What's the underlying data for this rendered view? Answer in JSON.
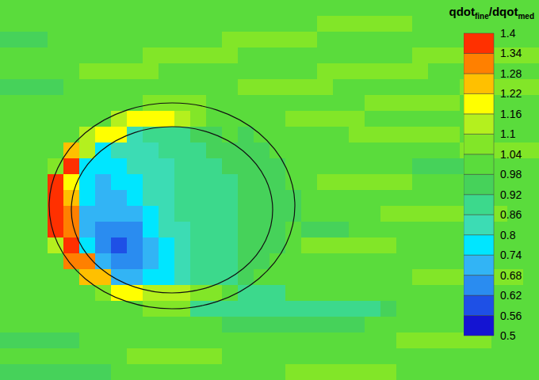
{
  "chart_data": {
    "type": "contour",
    "title": [
      {
        "text": "qdot"
      },
      {
        "text": "fine",
        "sub": true
      },
      {
        "text": "/dqot"
      },
      {
        "text": "med",
        "sub": true
      }
    ],
    "xlim": [
      0,
      34
    ],
    "ylim": [
      0,
      24
    ],
    "tick_labels": false,
    "cells": [
      [
        1,
        1,
        1,
        1,
        1,
        1,
        1,
        1,
        1,
        1,
        1,
        1,
        1,
        1,
        1,
        1,
        1,
        1,
        1,
        1,
        1,
        1,
        1,
        1,
        1,
        1,
        1,
        1,
        1,
        1,
        1,
        1,
        1,
        1
      ],
      [
        1,
        1,
        1,
        1,
        1,
        1,
        1,
        1,
        1,
        1,
        1,
        1,
        1,
        1,
        1,
        1,
        1,
        1,
        1,
        1,
        1.05,
        1.05,
        1.05,
        1.05,
        1.05,
        1.05,
        1,
        1,
        1,
        1,
        1,
        1,
        1,
        1
      ],
      [
        0.96,
        0.96,
        0.96,
        1,
        1,
        1,
        1,
        1,
        1,
        1,
        1,
        1,
        1,
        1,
        1.05,
        1.05,
        1.05,
        1.05,
        1.05,
        1.05,
        1,
        1,
        1,
        1,
        1,
        1,
        1,
        1,
        1,
        1,
        1,
        1,
        1,
        1
      ],
      [
        1,
        1,
        1,
        1,
        1,
        1,
        1,
        1,
        1,
        1.05,
        1.05,
        1.05,
        1.05,
        1.05,
        1.05,
        1,
        1,
        1,
        1,
        1,
        1,
        1,
        1,
        1,
        1,
        1,
        1.05,
        1.05,
        1.05,
        1.05,
        1.05,
        1.05,
        1.05,
        1.05
      ],
      [
        1,
        1,
        1,
        1,
        1,
        1.05,
        1.05,
        1.05,
        1.05,
        1.05,
        1,
        1,
        1,
        1,
        1,
        1,
        1,
        1,
        1,
        1,
        1.05,
        1.05,
        1.05,
        1.05,
        1.05,
        1.05,
        1.05,
        1,
        1,
        1,
        1,
        1,
        1,
        1
      ],
      [
        0.96,
        0.96,
        0.96,
        0.96,
        1,
        1,
        1,
        1,
        1,
        1,
        1,
        1,
        1,
        1,
        1,
        1.05,
        1.05,
        1.05,
        1.05,
        1.05,
        1.05,
        1,
        1,
        1,
        1,
        1,
        1,
        1,
        1,
        1.05,
        1.05,
        1.05,
        1.05,
        1.05
      ],
      [
        1,
        1,
        1,
        1,
        1,
        1,
        1,
        1,
        1,
        1.05,
        1.05,
        1.05,
        1.05,
        1,
        1,
        1,
        1,
        1,
        1,
        1,
        1,
        1,
        1,
        1.05,
        1.05,
        1.05,
        1.05,
        1.05,
        1.05,
        1,
        1,
        1,
        1,
        1
      ],
      [
        1,
        1,
        1,
        1,
        1,
        1,
        1,
        1.1,
        1.16,
        1.2,
        1.16,
        1.1,
        1.05,
        1,
        1,
        1,
        1,
        1,
        1.05,
        1.05,
        1.05,
        1.05,
        1.05,
        1,
        1,
        1,
        1,
        1,
        1,
        1,
        1,
        1,
        1,
        1
      ],
      [
        1,
        1,
        1,
        1,
        1,
        1.1,
        1.2,
        1.16,
        0.85,
        0.86,
        0.88,
        0.9,
        0.92,
        0.93,
        0.98,
        0.95,
        1,
        1,
        1,
        1,
        1,
        1,
        1.05,
        1.05,
        1.05,
        1.05,
        1.05,
        1.05,
        1.05,
        1,
        1,
        1,
        1,
        1
      ],
      [
        1,
        1,
        1,
        1,
        1.25,
        1.15,
        0.78,
        0.8,
        0.82,
        0.85,
        0.86,
        0.88,
        0.9,
        0.92,
        0.93,
        0.95,
        0.96,
        1,
        1,
        1,
        1,
        1,
        1,
        1,
        1,
        1,
        1,
        1,
        1,
        1.05,
        1.05,
        1.05,
        1.05,
        1.05
      ],
      [
        1,
        1,
        1,
        1.05,
        1.35,
        0.76,
        0.74,
        0.78,
        0.8,
        0.83,
        0.85,
        0.87,
        0.89,
        0.9,
        0.92,
        0.93,
        0.95,
        0.97,
        1,
        1,
        1,
        1,
        1,
        1,
        1,
        1,
        0.95,
        0.95,
        0.95,
        0.95,
        0.95,
        1,
        1,
        1
      ],
      [
        1,
        1,
        1,
        1.38,
        1.2,
        0.76,
        0.73,
        0.75,
        0.78,
        0.8,
        0.83,
        0.86,
        0.88,
        0.9,
        0.91,
        0.92,
        0.93,
        0.96,
        1,
        1,
        1.05,
        1.05,
        1.05,
        1.05,
        1.05,
        1.05,
        1,
        1,
        1,
        1,
        1,
        1,
        1,
        1
      ],
      [
        1,
        1,
        1.02,
        1.4,
        1.25,
        0.74,
        0.72,
        0.72,
        0.76,
        0.8,
        0.83,
        0.86,
        0.88,
        0.9,
        0.91,
        0.92,
        0.93,
        0.95,
        0.97,
        1,
        1,
        1,
        1,
        1,
        1,
        1,
        1,
        1,
        1,
        1,
        1,
        1,
        1,
        1
      ],
      [
        1,
        1,
        1,
        1.4,
        1.28,
        0.72,
        0.7,
        0.68,
        0.72,
        0.78,
        0.82,
        0.86,
        0.88,
        0.9,
        0.91,
        0.92,
        0.93,
        0.95,
        0.97,
        1,
        1,
        1,
        1,
        1,
        1.05,
        1.05,
        1.05,
        1.05,
        1.05,
        1.05,
        1.05,
        1.05,
        1,
        1
      ],
      [
        1,
        1,
        1,
        1.38,
        1.3,
        0.72,
        0.66,
        0.62,
        0.66,
        0.74,
        0.8,
        0.85,
        0.88,
        0.9,
        0.91,
        0.92,
        0.93,
        0.96,
        1,
        0.95,
        0.95,
        0.95,
        1,
        1,
        1,
        1,
        1,
        1,
        1,
        1,
        1,
        1,
        1,
        1
      ],
      [
        1,
        1,
        1,
        1.15,
        1.35,
        0.76,
        0.64,
        0.6,
        0.62,
        0.7,
        0.78,
        0.84,
        0.88,
        0.9,
        0.91,
        0.92,
        0.93,
        0.96,
        1,
        1.05,
        1.05,
        1.05,
        1.05,
        1.05,
        1.05,
        1,
        1,
        1,
        1,
        1,
        1,
        1,
        1,
        1
      ],
      [
        1,
        1,
        1,
        1,
        1.3,
        1.3,
        0.68,
        0.62,
        0.64,
        0.7,
        0.76,
        0.82,
        0.86,
        0.88,
        0.9,
        0.92,
        0.96,
        1,
        1,
        1,
        1,
        1,
        1,
        1,
        1,
        1,
        1,
        1,
        1,
        1,
        1,
        1,
        1,
        1
      ],
      [
        1,
        1,
        1,
        1,
        1.02,
        1.22,
        1.25,
        0.72,
        0.72,
        0.74,
        0.78,
        0.82,
        0.86,
        0.88,
        0.9,
        0.95,
        1,
        1,
        1,
        1,
        1,
        1,
        1,
        1,
        1,
        1,
        1.05,
        1.05,
        1.05,
        1.05,
        1.05,
        1.05,
        1.05,
        1
      ],
      [
        1,
        1,
        1,
        1,
        1,
        1,
        1.05,
        1.18,
        1.16,
        1.14,
        1.12,
        1.1,
        1.08,
        1.04,
        1,
        0.9,
        0.9,
        0.9,
        1,
        1,
        1,
        1,
        1,
        1,
        1,
        1,
        1,
        1,
        1,
        1,
        1,
        1,
        1,
        1
      ],
      [
        1,
        1,
        1,
        1,
        1,
        1,
        1,
        1,
        1,
        1.05,
        1.05,
        1.05,
        0.88,
        0.88,
        0.88,
        0.88,
        0.88,
        0.88,
        0.88,
        0.88,
        0.88,
        0.88,
        0.88,
        0.88,
        0.93,
        1,
        1,
        1,
        1,
        1,
        1,
        1,
        1,
        1
      ],
      [
        1,
        1,
        1,
        1,
        1,
        1,
        1,
        1,
        1,
        1,
        1,
        1,
        1,
        1,
        0.95,
        0.95,
        0.95,
        0.95,
        0.95,
        0.95,
        0.95,
        0.95,
        0.95,
        1,
        1,
        1,
        1,
        1,
        1,
        1,
        1,
        1,
        1,
        1
      ],
      [
        0.96,
        0.96,
        0.96,
        0.96,
        0.96,
        1,
        1,
        1,
        1,
        1,
        1,
        1,
        1,
        1,
        1,
        1,
        1,
        1,
        1,
        1,
        1,
        1,
        1,
        1,
        1,
        1.05,
        1.05,
        1.05,
        1.05,
        1.05,
        1.05,
        1,
        1,
        1
      ],
      [
        1,
        1,
        1,
        1,
        1,
        1,
        1,
        1,
        1.05,
        1.05,
        1.05,
        1.05,
        1.05,
        1.05,
        1,
        1,
        1,
        1,
        1,
        1,
        1,
        1,
        1,
        1,
        1,
        1,
        1,
        1,
        1,
        1,
        1,
        1,
        1,
        1
      ],
      [
        0.96,
        0.96,
        0.96,
        0.96,
        0.96,
        0.96,
        0.96,
        1,
        1,
        1,
        1,
        1,
        1,
        1,
        1,
        1,
        1,
        1,
        1.05,
        1.05,
        1.05,
        1.05,
        1.05,
        1.05,
        1.05,
        1,
        1,
        1,
        1,
        1,
        1,
        1,
        1,
        1
      ]
    ],
    "colorbar": {
      "range": [
        0.5,
        1.4
      ],
      "ticks": [
        0.5,
        0.56,
        0.62,
        0.68,
        0.74,
        0.8,
        0.86,
        0.92,
        0.98,
        1.04,
        1.1,
        1.16,
        1.22,
        1.28,
        1.34,
        1.4
      ],
      "colors": [
        "#1414d2",
        "#1e50e6",
        "#2a8cf0",
        "#32b4f5",
        "#00e6ff",
        "#3cdcb4",
        "#3cd98c",
        "#46d25a",
        "#5adc3c",
        "#82e628",
        "#b4f01e",
        "#ffff00",
        "#ffc000",
        "#ff8000",
        "#ff3000"
      ]
    }
  }
}
